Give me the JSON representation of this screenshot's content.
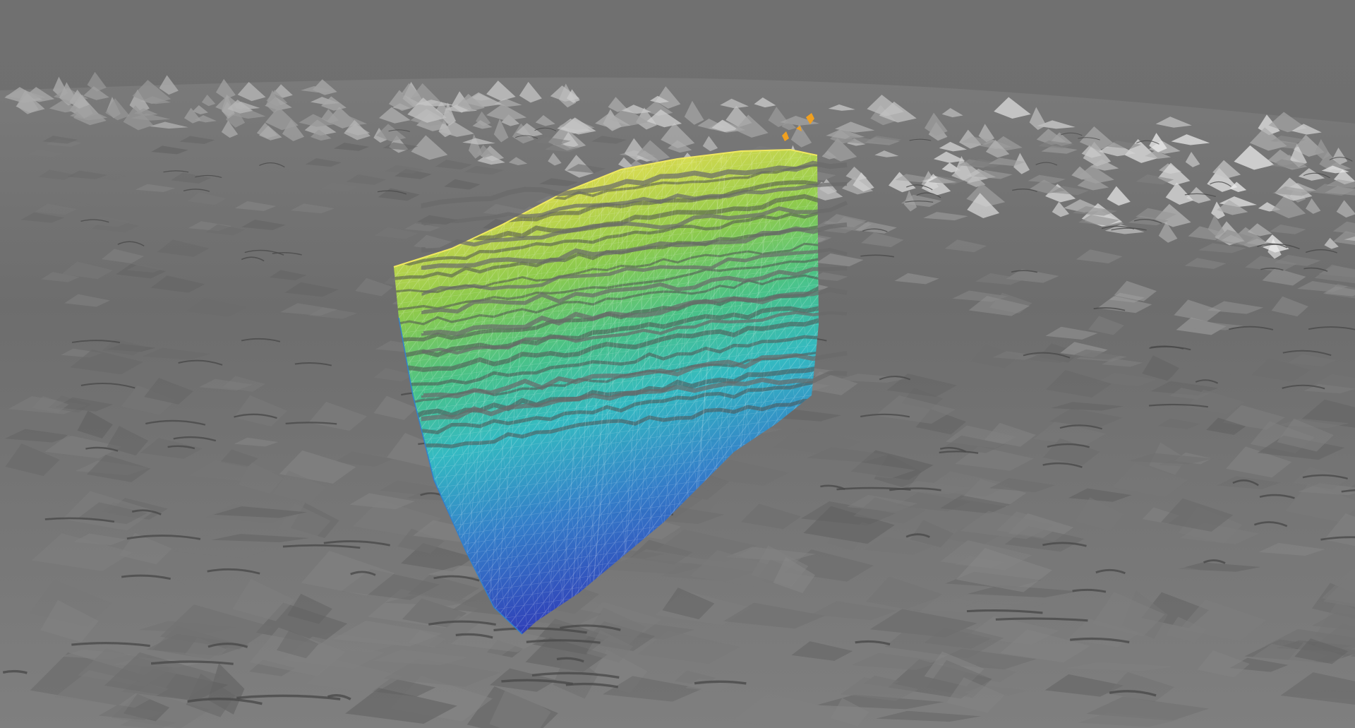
{
  "viewer": {
    "background_color": "#6e6e6e",
    "terrain_color": "#8c8c8c",
    "terrain_highlight_color": "#c9c9c9",
    "terrain_shadow_color": "#4a4a4a",
    "ridge_color": "#d8d8d8",
    "wireframe_color": "#ffffff"
  },
  "surface": {
    "colormap": [
      "#2b3fbf",
      "#2f7fd0",
      "#2fc0c8",
      "#46c98a",
      "#8fd24a",
      "#d6e04a",
      "#f0e860"
    ],
    "marker_color": "#f0a020"
  }
}
